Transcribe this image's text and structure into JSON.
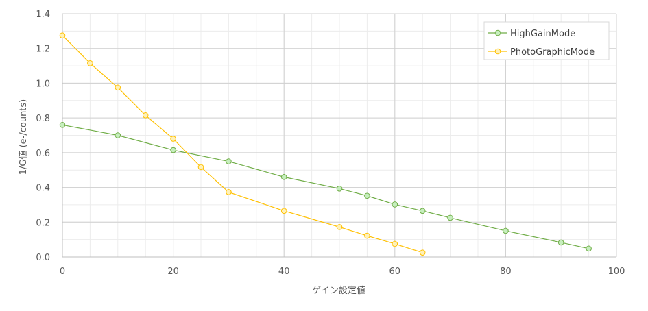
{
  "chart_data": {
    "type": "line",
    "xlabel": "ゲイン設定値",
    "ylabel": "1/G値 (e-/counts)",
    "xlim": [
      0,
      100
    ],
    "ylim": [
      0,
      1.4
    ],
    "xticks": [
      "0",
      "20",
      "40",
      "60",
      "80",
      "100"
    ],
    "yticks": [
      "0.0",
      "0.2",
      "0.4",
      "0.6",
      "0.8",
      "1.0",
      "1.2",
      "1.4"
    ],
    "xtick_values": [
      0,
      20,
      40,
      60,
      80,
      100
    ],
    "ytick_values": [
      0,
      0.2,
      0.4,
      0.6,
      0.8,
      1.0,
      1.2,
      1.4
    ],
    "minor_x_step": 5,
    "minor_y_step": 0.1,
    "grid": true,
    "legend_position": "top-right",
    "series": [
      {
        "name": "HighGainMode",
        "color": "#70ad47",
        "marker_fill": "#c6eebd",
        "points": [
          [
            0,
            0.76
          ],
          [
            10,
            0.7
          ],
          [
            20,
            0.615
          ],
          [
            30,
            0.55
          ],
          [
            40,
            0.46
          ],
          [
            50,
            0.393
          ],
          [
            55,
            0.352
          ],
          [
            60,
            0.302
          ],
          [
            65,
            0.265
          ],
          [
            70,
            0.225
          ],
          [
            80,
            0.15
          ],
          [
            90,
            0.083
          ],
          [
            95,
            0.048
          ]
        ]
      },
      {
        "name": "PhotoGraphicMode",
        "color": "#ffc000",
        "marker_fill": "#fff1b8",
        "points": [
          [
            0,
            1.275
          ],
          [
            5,
            1.115
          ],
          [
            10,
            0.975
          ],
          [
            15,
            0.815
          ],
          [
            20,
            0.68
          ],
          [
            25,
            0.517
          ],
          [
            30,
            0.373
          ],
          [
            40,
            0.265
          ],
          [
            50,
            0.172
          ],
          [
            55,
            0.122
          ],
          [
            60,
            0.075
          ],
          [
            65,
            0.025
          ]
        ]
      }
    ]
  }
}
